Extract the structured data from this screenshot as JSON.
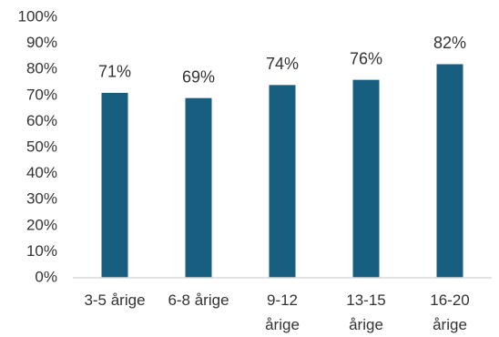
{
  "chart_data": {
    "type": "bar",
    "title": "",
    "xlabel": "",
    "ylabel": "",
    "categories": [
      [
        "3-5 årige"
      ],
      [
        "6-8 årige"
      ],
      [
        "9-12",
        "årige"
      ],
      [
        "13-15",
        "årige"
      ],
      [
        "16-20",
        "årige"
      ]
    ],
    "values": [
      71,
      69,
      74,
      76,
      82
    ],
    "data_labels": [
      "71%",
      "69%",
      "74%",
      "76%",
      "82%"
    ],
    "yticks": [
      "0%",
      "10%",
      "20%",
      "30%",
      "40%",
      "50%",
      "60%",
      "70%",
      "80%",
      "90%",
      "100%"
    ],
    "ylim": [
      0,
      100
    ],
    "grid": false,
    "legend": "none",
    "colors": {
      "bar": "#175E80",
      "text": "#333333",
      "axis": "#D9D9D9"
    }
  }
}
